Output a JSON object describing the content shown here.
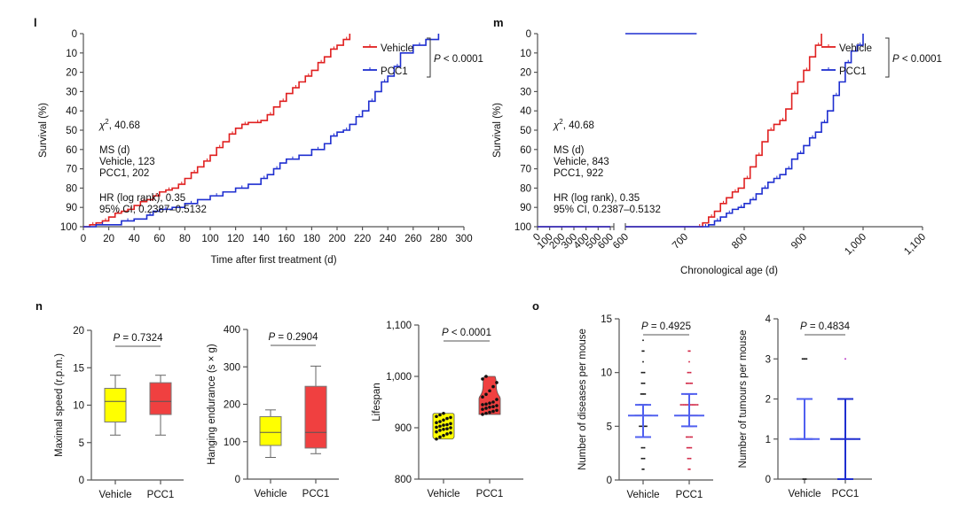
{
  "chart_data": [
    {
      "panel": "l",
      "type": "line",
      "step": true,
      "xlabel": "Time after first treatment (d)",
      "ylabel": "Survival (%)",
      "xlim": [
        0,
        300
      ],
      "ylim": [
        0,
        100
      ],
      "xticks": [
        0,
        20,
        40,
        60,
        80,
        100,
        120,
        140,
        160,
        180,
        200,
        220,
        240,
        260,
        280,
        300
      ],
      "yticks": [
        0,
        10,
        20,
        30,
        40,
        50,
        60,
        70,
        80,
        90,
        100
      ],
      "legend": {
        "placement": "top-right",
        "bracket_label": "P < 0.0001"
      },
      "annotations": [
        "χ², 40.68",
        "MS (d)",
        "Vehicle, 123",
        "PCC1, 202",
        "HR (log rank), 0.35",
        "95% CI, 0.2387–0.5132"
      ],
      "series": [
        {
          "name": "Vehicle",
          "color": "#e02020",
          "x": [
            0,
            5,
            10,
            15,
            20,
            25,
            30,
            35,
            40,
            45,
            50,
            55,
            60,
            65,
            70,
            75,
            80,
            85,
            90,
            95,
            100,
            105,
            110,
            115,
            120,
            125,
            130,
            135,
            140,
            145,
            150,
            155,
            160,
            165,
            170,
            175,
            180,
            185,
            190,
            195,
            200,
            205,
            210
          ],
          "y": [
            100,
            99,
            98,
            97,
            95,
            93,
            92,
            91,
            89,
            87,
            86,
            84,
            82,
            81,
            80,
            78,
            75,
            72,
            69,
            66,
            63,
            59,
            56,
            52,
            49,
            47,
            46,
            46,
            45,
            42,
            38,
            35,
            31,
            28,
            25,
            22,
            19,
            15,
            12,
            8,
            6,
            3,
            0
          ]
        },
        {
          "name": "PCC1",
          "color": "#1f2fd0",
          "x": [
            0,
            10,
            20,
            30,
            40,
            50,
            55,
            60,
            70,
            80,
            90,
            100,
            110,
            120,
            130,
            140,
            145,
            150,
            155,
            160,
            170,
            180,
            190,
            195,
            200,
            205,
            210,
            215,
            220,
            225,
            230,
            235,
            240,
            245,
            250,
            260,
            270,
            280
          ],
          "y": [
            100,
            99,
            99,
            97,
            96,
            94,
            92,
            91,
            90,
            88,
            86,
            84,
            82,
            80,
            78,
            75,
            73,
            70,
            67,
            65,
            63,
            60,
            57,
            53,
            51,
            50,
            47,
            43,
            40,
            35,
            30,
            25,
            22,
            17,
            10,
            6,
            3,
            0
          ]
        }
      ]
    },
    {
      "panel": "m",
      "type": "line",
      "step": true,
      "xlabel": "Chronological age (d)",
      "ylabel": "Survival (%)",
      "axis_break": [
        600,
        600
      ],
      "xlim": [
        0,
        1100
      ],
      "ylim": [
        0,
        100
      ],
      "xticks_left": [
        "0",
        "100",
        "200",
        "300",
        "400",
        "500",
        "600"
      ],
      "xticks_right": [
        "600",
        "700",
        "800",
        "900",
        "1,000",
        "1,100"
      ],
      "yticks": [
        0,
        10,
        20,
        30,
        40,
        50,
        60,
        70,
        80,
        90,
        100
      ],
      "legend": {
        "placement": "top-right",
        "bracket_label": "P < 0.0001"
      },
      "annotations": [
        "χ², 40.68",
        "MS (d)",
        "Vehicle, 843",
        "PCC1, 922",
        "HR (log rank), 0.35",
        "95% CI, 0.2387–0.5132"
      ],
      "series": [
        {
          "name": "Vehicle",
          "color": "#e02020",
          "x": [
            600,
            720,
            730,
            740,
            750,
            760,
            770,
            780,
            790,
            800,
            810,
            820,
            830,
            840,
            850,
            860,
            870,
            880,
            890,
            900,
            910,
            920,
            930
          ],
          "y": [
            100,
            100,
            98,
            95,
            92,
            88,
            85,
            82,
            80,
            75,
            69,
            63,
            56,
            50,
            47,
            45,
            39,
            31,
            25,
            19,
            12,
            6,
            0
          ]
        },
        {
          "name": "PCC1",
          "color": "#1f2fd0",
          "x": [
            600,
            730,
            740,
            750,
            760,
            770,
            780,
            790,
            800,
            810,
            820,
            830,
            840,
            850,
            860,
            870,
            880,
            890,
            900,
            910,
            920,
            930,
            940,
            950,
            960,
            970,
            980,
            990,
            1000
          ],
          "y": [
            100,
            100,
            99,
            97,
            95,
            93,
            91,
            90,
            88,
            86,
            83,
            80,
            77,
            75,
            73,
            70,
            65,
            62,
            58,
            54,
            51,
            46,
            40,
            32,
            25,
            15,
            9,
            6,
            0
          ]
        }
      ]
    },
    {
      "panel": "n",
      "type": "box",
      "ylabel": "Maximal speed (r.p.m.)",
      "categories": [
        "Vehicle",
        "PCC1"
      ],
      "ylim": [
        0,
        20
      ],
      "yticks": [
        0,
        5,
        10,
        15,
        20
      ],
      "pvalue": "P = 0.7324",
      "series": [
        {
          "name": "Vehicle",
          "color": "#ffff00",
          "min": 6,
          "q1": 7.75,
          "median": 10.5,
          "q3": 12.25,
          "max": 14
        },
        {
          "name": "PCC1",
          "color": "#f04040",
          "min": 6,
          "q1": 8.75,
          "median": 10.5,
          "q3": 13,
          "max": 14
        }
      ]
    },
    {
      "panel": "n",
      "type": "box",
      "ylabel": "Hanging endurance (s × g)",
      "categories": [
        "Vehicle",
        "PCC1"
      ],
      "ylim": [
        0,
        400
      ],
      "yticks": [
        0,
        100,
        200,
        300,
        400
      ],
      "pvalue": "P = 0.2904",
      "series": [
        {
          "name": "Vehicle",
          "color": "#ffff00",
          "min": 58,
          "q1": 90,
          "median": 125,
          "q3": 167,
          "max": 185
        },
        {
          "name": "PCC1",
          "color": "#f04040",
          "min": 68,
          "q1": 83,
          "median": 125,
          "q3": 248,
          "max": 302
        }
      ]
    },
    {
      "panel": "n",
      "type": "violin",
      "ylabel": "Lifespan",
      "categories": [
        "Vehicle",
        "PCC1"
      ],
      "ylim": [
        800,
        1100
      ],
      "yticks": [
        "800",
        "900",
        "1,000",
        "1,100"
      ],
      "pvalue": "P < 0.0001",
      "series": [
        {
          "name": "Vehicle",
          "color": "#ffff00",
          "values": [
            878,
            882,
            885,
            888,
            890,
            892,
            895,
            897,
            898,
            900,
            901,
            903,
            905,
            906,
            908,
            910,
            912,
            915,
            918,
            920,
            922,
            925,
            928
          ]
        },
        {
          "name": "PCC1",
          "color": "#f04040",
          "values": [
            926,
            928,
            930,
            932,
            934,
            936,
            938,
            940,
            941,
            943,
            945,
            946,
            948,
            950,
            955,
            960,
            965,
            972,
            980,
            988,
            995,
            1000
          ]
        }
      ]
    },
    {
      "panel": "o",
      "type": "scatter",
      "ylabel": "Number of diseases per mouse",
      "categories": [
        "Vehicle",
        "PCC1"
      ],
      "ylim": [
        0,
        15
      ],
      "yticks": [
        0,
        5,
        10,
        15
      ],
      "pvalue": "P = 0.4925",
      "series": [
        {
          "name": "Vehicle",
          "color": "#111111",
          "mean": 6,
          "err_low": 4,
          "err_high": 7,
          "counts": {
            "1": 2,
            "2": 3,
            "3": 3,
            "4": 6,
            "5": 6,
            "6": 12,
            "7": 6,
            "8": 4,
            "9": 3,
            "10": 3,
            "11": 1,
            "12": 2,
            "13": 1
          }
        },
        {
          "name": "PCC1",
          "color": "#d02040",
          "mean": 6,
          "err_low": 5,
          "err_high": 8,
          "counts": {
            "1": 2,
            "2": 3,
            "3": 4,
            "4": 5,
            "5": 6,
            "6": 12,
            "7": 13,
            "8": 6,
            "9": 5,
            "10": 3,
            "11": 1,
            "12": 2
          }
        }
      ]
    },
    {
      "panel": "o",
      "type": "scatter",
      "ylabel": "Number of tumours per mouse",
      "categories": [
        "Vehicle",
        "PCC1"
      ],
      "ylim": [
        0,
        4
      ],
      "yticks": [
        0,
        1,
        2,
        3,
        4
      ],
      "pvalue": "P = 0.4834",
      "series": [
        {
          "name": "Vehicle",
          "color": "#111111",
          "mean": 1,
          "err_low": 1,
          "err_high": 2,
          "counts": {
            "0": 3,
            "1": 14,
            "2": 5,
            "3": 4
          }
        },
        {
          "name": "PCC1",
          "color": "#b020c0",
          "mean": 1,
          "err_low": 0,
          "err_high": 2,
          "counts": {
            "0": 6,
            "1": 14,
            "2": 6,
            "3": 1
          }
        }
      ]
    }
  ],
  "panel_labels": {
    "l": "l",
    "m": "m",
    "n": "n",
    "o": "o"
  },
  "legend_labels": {
    "vehicle": "Vehicle",
    "pcc1": "PCC1",
    "p": "P",
    "p_rest": " < 0.0001"
  },
  "colors": {
    "vehicle_line": "#e02020",
    "pcc1_line": "#1f2fd0",
    "vehicle_fill": "#ffff00",
    "pcc1_fill": "#f04040",
    "errbar": "#5060f0"
  }
}
